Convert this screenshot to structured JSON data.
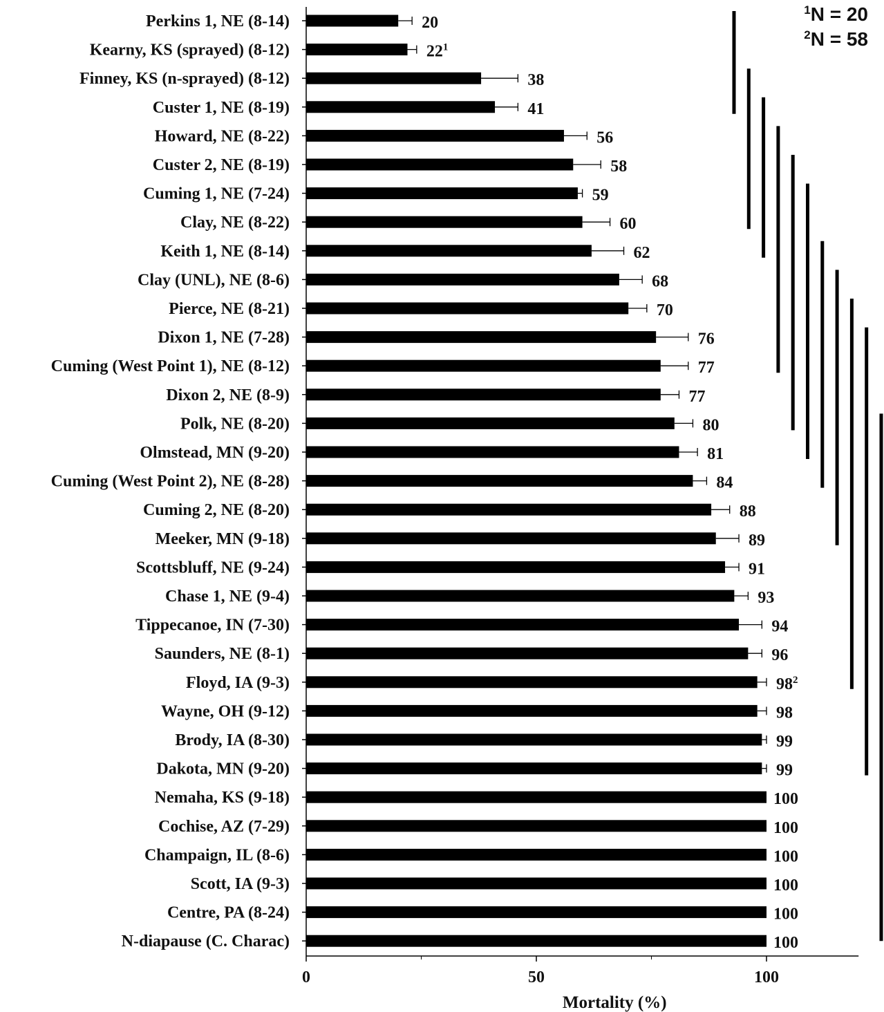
{
  "chart_data": {
    "type": "bar",
    "orientation": "horizontal",
    "categories": [
      "Perkins 1, NE (8-14)",
      "Kearny, KS (sprayed) (8-12)",
      "Finney, KS (n-sprayed) (8-12)",
      "Custer 1, NE (8-19)",
      "Howard, NE (8-22)",
      "Custer 2, NE (8-19)",
      "Cuming 1, NE (7-24)",
      "Clay, NE (8-22)",
      "Keith 1, NE (8-14)",
      "Clay (UNL), NE (8-6)",
      "Pierce, NE (8-21)",
      "Dixon 1, NE (7-28)",
      "Cuming (West Point 1), NE (8-12)",
      "Dixon 2, NE (8-9)",
      "Polk, NE (8-20)",
      "Olmstead, MN (9-20)",
      "Cuming (West Point 2), NE (8-28)",
      "Cuming 2, NE (8-20)",
      "Meeker, MN (9-18)",
      "Scottsbluff, NE (9-24)",
      "Chase 1, NE (9-4)",
      "Tippecanoe, IN (7-30)",
      "Saunders, NE (8-1)",
      "Floyd, IA (9-3)",
      "Wayne, OH (9-12)",
      "Brody, IA (8-30)",
      "Dakota, MN (9-20)",
      "Nemaha, KS (9-18)",
      "Cochise, AZ (7-29)",
      "Champaign, IL (8-6)",
      "Scott, IA (9-3)",
      "Centre, PA (8-24)",
      "N-diapause (C. Charac)"
    ],
    "values": [
      20,
      22,
      38,
      41,
      56,
      58,
      59,
      60,
      62,
      68,
      70,
      76,
      77,
      77,
      80,
      81,
      84,
      88,
      89,
      91,
      93,
      94,
      96,
      98,
      98,
      99,
      99,
      100,
      100,
      100,
      100,
      100,
      100
    ],
    "value_labels": [
      "20",
      "22",
      "38",
      "41",
      "56",
      "58",
      "59",
      "60",
      "62",
      "68",
      "70",
      "76",
      "77",
      "77",
      "80",
      "81",
      "84",
      "88",
      "89",
      "91",
      "93",
      "94",
      "96",
      "98",
      "98",
      "99",
      "99",
      "100",
      "100",
      "100",
      "100",
      "100",
      "100"
    ],
    "value_label_superscripts": [
      "",
      "1",
      "",
      "",
      "",
      "",
      "",
      "",
      "",
      "",
      "",
      "",
      "",
      "",
      "",
      "",
      "",
      "",
      "",
      "",
      "",
      "",
      "",
      "2",
      "",
      "",
      "",
      "",
      "",
      "",
      "",
      "",
      ""
    ],
    "error_upper": [
      23,
      24,
      46,
      46,
      61,
      64,
      60,
      66,
      69,
      73,
      74,
      83,
      83,
      81,
      84,
      85,
      87,
      92,
      94,
      94,
      96,
      99,
      99,
      100,
      100,
      100,
      100,
      100,
      100,
      100,
      100,
      100,
      100
    ],
    "xlim": [
      0,
      120
    ],
    "xticks": [
      0,
      50,
      100
    ],
    "tick_labels": [
      "0",
      "50",
      "100"
    ],
    "xlabel": "Mortality (%)",
    "title": "",
    "ylabel": "",
    "grid": false,
    "bar_color": "#000000",
    "annotations": [
      {
        "sup": "1",
        "text": "N = 20"
      },
      {
        "sup": "2",
        "text": "N = 58"
      }
    ],
    "significance_groups": [
      {
        "from": 0,
        "to": 3
      },
      {
        "from": 2,
        "to": 7
      },
      {
        "from": 3,
        "to": 8
      },
      {
        "from": 4,
        "to": 12
      },
      {
        "from": 5,
        "to": 14
      },
      {
        "from": 6,
        "to": 15
      },
      {
        "from": 8,
        "to": 16
      },
      {
        "from": 9,
        "to": 18
      },
      {
        "from": 10,
        "to": 23
      },
      {
        "from": 11,
        "to": 26
      },
      {
        "from": 14,
        "to": 32
      }
    ]
  }
}
